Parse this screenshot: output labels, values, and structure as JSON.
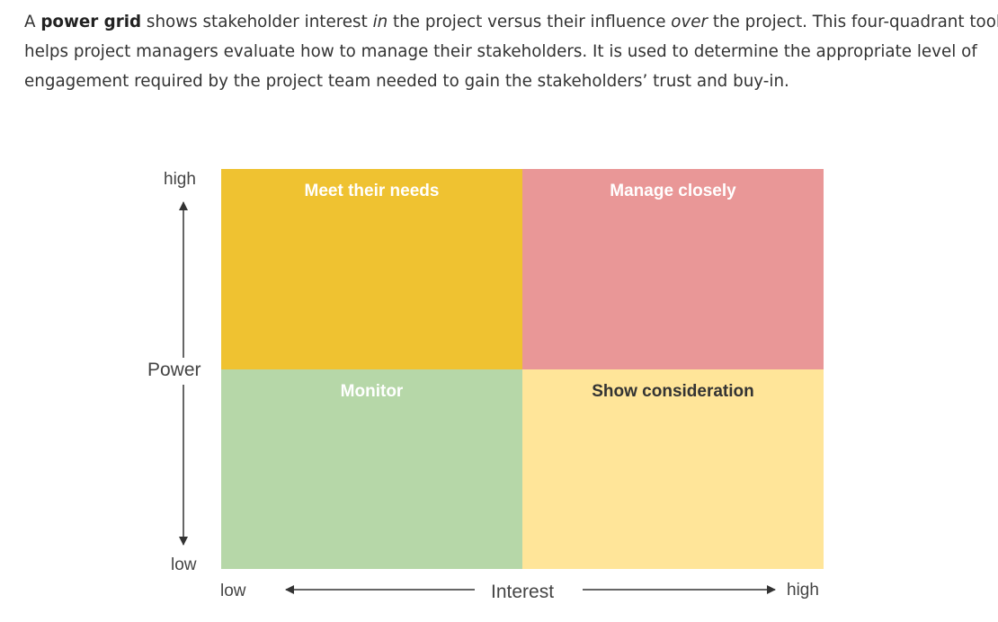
{
  "intro": {
    "p1_a": "A ",
    "p1_bold": "power grid",
    "p1_b": " shows stakeholder interest ",
    "p1_italic1": "in",
    "p1_c": " the project versus their influence ",
    "p1_italic2": "over",
    "p1_d": " the project. This four-quadrant tool",
    "line2": "helps project managers evaluate how to manage their stakeholders. It is used to determine the appropriate level of",
    "line3": "engagement required by the project team needed to gain the stakeholders’ trust and buy-in."
  },
  "grid": {
    "quadrants": [
      {
        "position": "top-left",
        "label": "Meet their needs",
        "color": "#EFC231",
        "text_color": "#FFFFFF"
      },
      {
        "position": "top-right",
        "label": "Manage closely",
        "color": "#E99797",
        "text_color": "#FFFFFF"
      },
      {
        "position": "bottom-left",
        "label": "Monitor",
        "color": "#B6D7A8",
        "text_color": "#FFFFFF"
      },
      {
        "position": "bottom-right",
        "label": "Show consideration",
        "color": "#FFE599",
        "text_color": "#333333"
      }
    ]
  },
  "axes": {
    "y": {
      "title": "Power",
      "high": "high",
      "low": "low"
    },
    "x": {
      "title": "Interest",
      "low": "low",
      "high": "high"
    },
    "arrow_color": "#333333"
  }
}
